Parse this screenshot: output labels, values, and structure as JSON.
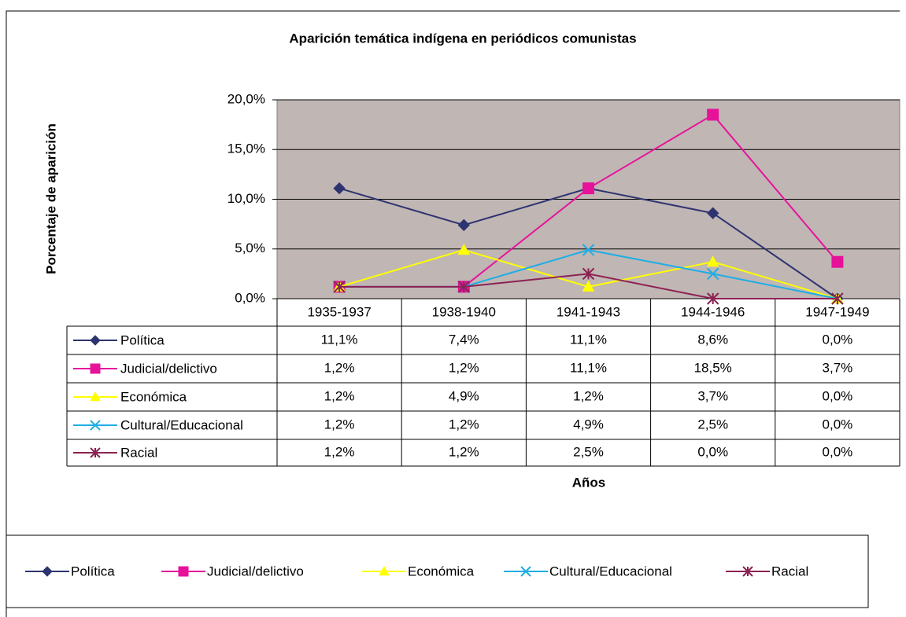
{
  "chart_data": {
    "type": "line",
    "title": "Aparición temática indígena en periódicos comunistas",
    "x_label": "Años",
    "y_label": "Porcentaje de aparición",
    "categories": [
      "1935-1937",
      "1938-1940",
      "1941-1943",
      "1944-1946",
      "1947-1949"
    ],
    "ylim": [
      0,
      20
    ],
    "yticks": [
      {
        "value": 0,
        "label": "0,0%"
      },
      {
        "value": 5,
        "label": "5,0%"
      },
      {
        "value": 10,
        "label": "10,0%"
      },
      {
        "value": 15,
        "label": "15,0%"
      },
      {
        "value": 20,
        "label": "20,0%"
      }
    ],
    "grid": true,
    "plot_background": "#c0b6b4",
    "legend": "bottom",
    "series": [
      {
        "name": "Política",
        "color": "#2e3470",
        "marker": "diamond",
        "values": [
          11.1,
          7.4,
          11.1,
          8.6,
          0
        ],
        "value_labels": [
          "11,1%",
          "7,4%",
          "11,1%",
          "8,6%",
          "0,0%"
        ]
      },
      {
        "name": "Judicial/delictivo",
        "color": "#e6139a",
        "marker": "square",
        "values": [
          1.2,
          1.2,
          11.1,
          18.5,
          3.7
        ],
        "value_labels": [
          "1,2%",
          "1,2%",
          "11,1%",
          "18,5%",
          "3,7%"
        ]
      },
      {
        "name": "Económica",
        "color": "#ffff00",
        "marker": "triangle",
        "values": [
          1.2,
          4.9,
          1.2,
          3.7,
          0
        ],
        "value_labels": [
          "1,2%",
          "4,9%",
          "1,2%",
          "3,7%",
          "0,0%"
        ]
      },
      {
        "name": "Cultural/Educacional",
        "color": "#1eaee6",
        "marker": "x",
        "values": [
          1.2,
          1.2,
          4.9,
          2.5,
          0
        ],
        "value_labels": [
          "1,2%",
          "1,2%",
          "4,9%",
          "2,5%",
          "0,0%"
        ]
      },
      {
        "name": "Racial",
        "color": "#8b2252",
        "marker": "star",
        "values": [
          1.2,
          1.2,
          2.5,
          0,
          0
        ],
        "value_labels": [
          "1,2%",
          "1,2%",
          "2,5%",
          "0,0%",
          "0,0%"
        ]
      }
    ]
  }
}
